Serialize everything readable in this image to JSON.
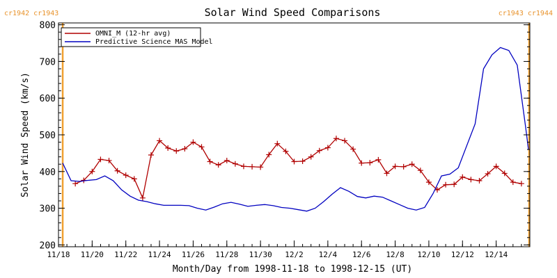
{
  "chart_data": {
    "type": "line",
    "title": "Solar Wind Speed Comparisons",
    "xlabel": "Month/Day from 1998-11-18 to 1998-12-15 (UT)",
    "ylabel": "Solar Wind Speed (km/s)",
    "xlim": [
      "1998-11-18T00",
      "1998-12-16T00"
    ],
    "ylim": [
      195,
      805
    ],
    "grid": false,
    "legend_position": "top-left",
    "x_ticks": [
      {
        "date": "1998-11-18",
        "label": "11/18"
      },
      {
        "date": "1998-11-20",
        "label": "11/20"
      },
      {
        "date": "1998-11-22",
        "label": "11/22"
      },
      {
        "date": "1998-11-24",
        "label": "11/24"
      },
      {
        "date": "1998-11-26",
        "label": "11/26"
      },
      {
        "date": "1998-11-28",
        "label": "11/28"
      },
      {
        "date": "1998-11-30",
        "label": "11/30"
      },
      {
        "date": "1998-12-02",
        "label": "12/2"
      },
      {
        "date": "1998-12-04",
        "label": "12/4"
      },
      {
        "date": "1998-12-06",
        "label": "12/6"
      },
      {
        "date": "1998-12-08",
        "label": "12/8"
      },
      {
        "date": "1998-12-10",
        "label": "12/10"
      },
      {
        "date": "1998-12-12",
        "label": "12/12"
      },
      {
        "date": "1998-12-14",
        "label": "12/14"
      }
    ],
    "y_ticks": [
      200,
      300,
      400,
      500,
      600,
      700,
      800
    ],
    "carrington_markers": [
      {
        "date": "1998-11-18T06",
        "label": "cr1942 cr1943",
        "align": "left"
      },
      {
        "date": "1998-12-15T23",
        "label": "cr1943 cr1944",
        "align": "right"
      }
    ],
    "series": [
      {
        "name": "OMNI_M (12-hr avg)",
        "color": "#b00000",
        "marker": "plus",
        "points": [
          [
            "1998-11-19T00",
            367
          ],
          [
            "1998-11-19T12",
            376
          ],
          [
            "1998-11-20T00",
            400
          ],
          [
            "1998-11-20T12",
            433
          ],
          [
            "1998-11-21T00",
            430
          ],
          [
            "1998-11-21T12",
            402
          ],
          [
            "1998-11-22T00",
            390
          ],
          [
            "1998-11-22T12",
            380
          ],
          [
            "1998-11-23T00",
            328
          ],
          [
            "1998-11-23T12",
            445
          ],
          [
            "1998-11-24T00",
            484
          ],
          [
            "1998-11-24T12",
            464
          ],
          [
            "1998-11-25T00",
            456
          ],
          [
            "1998-11-25T12",
            462
          ],
          [
            "1998-11-26T00",
            480
          ],
          [
            "1998-11-26T12",
            467
          ],
          [
            "1998-11-27T00",
            427
          ],
          [
            "1998-11-27T12",
            418
          ],
          [
            "1998-11-28T00",
            430
          ],
          [
            "1998-11-28T12",
            421
          ],
          [
            "1998-11-29T00",
            414
          ],
          [
            "1998-11-29T12",
            413
          ],
          [
            "1998-11-30T00",
            412
          ],
          [
            "1998-11-30T12",
            446
          ],
          [
            "1998-12-01T00",
            476
          ],
          [
            "1998-12-01T12",
            455
          ],
          [
            "1998-12-02T00",
            427
          ],
          [
            "1998-12-02T12",
            428
          ],
          [
            "1998-12-03T00",
            440
          ],
          [
            "1998-12-03T12",
            457
          ],
          [
            "1998-12-04T00",
            465
          ],
          [
            "1998-12-04T12",
            490
          ],
          [
            "1998-12-05T00",
            484
          ],
          [
            "1998-12-05T12",
            461
          ],
          [
            "1998-12-06T00",
            423
          ],
          [
            "1998-12-06T12",
            424
          ],
          [
            "1998-12-07T00",
            432
          ],
          [
            "1998-12-07T12",
            395
          ],
          [
            "1998-12-08T00",
            414
          ],
          [
            "1998-12-08T12",
            413
          ],
          [
            "1998-12-09T00",
            420
          ],
          [
            "1998-12-09T12",
            403
          ],
          [
            "1998-12-10T00",
            371
          ],
          [
            "1998-12-10T12",
            350
          ],
          [
            "1998-12-11T00",
            364
          ],
          [
            "1998-12-11T12",
            365
          ],
          [
            "1998-12-12T00",
            385
          ],
          [
            "1998-12-12T12",
            378
          ],
          [
            "1998-12-13T00",
            375
          ],
          [
            "1998-12-13T12",
            394
          ],
          [
            "1998-12-14T00",
            414
          ],
          [
            "1998-12-14T12",
            395
          ],
          [
            "1998-12-15T00",
            371
          ],
          [
            "1998-12-15T12",
            367
          ]
        ]
      },
      {
        "name": "Predictive Science MAS Model",
        "color": "#0000c0",
        "marker": "none",
        "points": [
          [
            "1998-11-18T06",
            423
          ],
          [
            "1998-11-18T18",
            375
          ],
          [
            "1998-11-19T06",
            373
          ],
          [
            "1998-11-19T18",
            376
          ],
          [
            "1998-11-20T06",
            378
          ],
          [
            "1998-11-20T18",
            388
          ],
          [
            "1998-11-21T06",
            375
          ],
          [
            "1998-11-21T18",
            350
          ],
          [
            "1998-11-22T06",
            333
          ],
          [
            "1998-11-22T18",
            322
          ],
          [
            "1998-11-23T06",
            318
          ],
          [
            "1998-11-23T18",
            312
          ],
          [
            "1998-11-24T06",
            308
          ],
          [
            "1998-11-24T18",
            308
          ],
          [
            "1998-11-25T06",
            308
          ],
          [
            "1998-11-25T18",
            307
          ],
          [
            "1998-11-26T06",
            300
          ],
          [
            "1998-11-26T18",
            295
          ],
          [
            "1998-11-27T06",
            303
          ],
          [
            "1998-11-27T18",
            312
          ],
          [
            "1998-11-28T06",
            316
          ],
          [
            "1998-11-28T18",
            311
          ],
          [
            "1998-11-29T06",
            305
          ],
          [
            "1998-11-29T18",
            308
          ],
          [
            "1998-11-30T06",
            310
          ],
          [
            "1998-11-30T18",
            307
          ],
          [
            "1998-12-01T06",
            302
          ],
          [
            "1998-12-01T18",
            300
          ],
          [
            "1998-12-02T06",
            296
          ],
          [
            "1998-12-02T18",
            292
          ],
          [
            "1998-12-03T06",
            300
          ],
          [
            "1998-12-03T18",
            318
          ],
          [
            "1998-12-04T06",
            338
          ],
          [
            "1998-12-04T18",
            356
          ],
          [
            "1998-12-05T06",
            346
          ],
          [
            "1998-12-05T18",
            332
          ],
          [
            "1998-12-06T06",
            328
          ],
          [
            "1998-12-06T18",
            333
          ],
          [
            "1998-12-07T06",
            330
          ],
          [
            "1998-12-07T18",
            320
          ],
          [
            "1998-12-08T06",
            310
          ],
          [
            "1998-12-08T18",
            300
          ],
          [
            "1998-12-09T06",
            295
          ],
          [
            "1998-12-09T18",
            302
          ],
          [
            "1998-12-10T06",
            340
          ],
          [
            "1998-12-10T18",
            388
          ],
          [
            "1998-12-11T06",
            393
          ],
          [
            "1998-12-11T18",
            410
          ],
          [
            "1998-12-12T06",
            470
          ],
          [
            "1998-12-12T18",
            530
          ],
          [
            "1998-12-13T06",
            680
          ],
          [
            "1998-12-13T18",
            718
          ],
          [
            "1998-12-14T06",
            738
          ],
          [
            "1998-12-14T18",
            730
          ],
          [
            "1998-12-15T06",
            690
          ],
          [
            "1998-12-15T18",
            520
          ],
          [
            "1998-12-15T22",
            460
          ]
        ]
      }
    ]
  },
  "colors": {
    "marker_line": "#f0a030",
    "frame": "#000000"
  }
}
